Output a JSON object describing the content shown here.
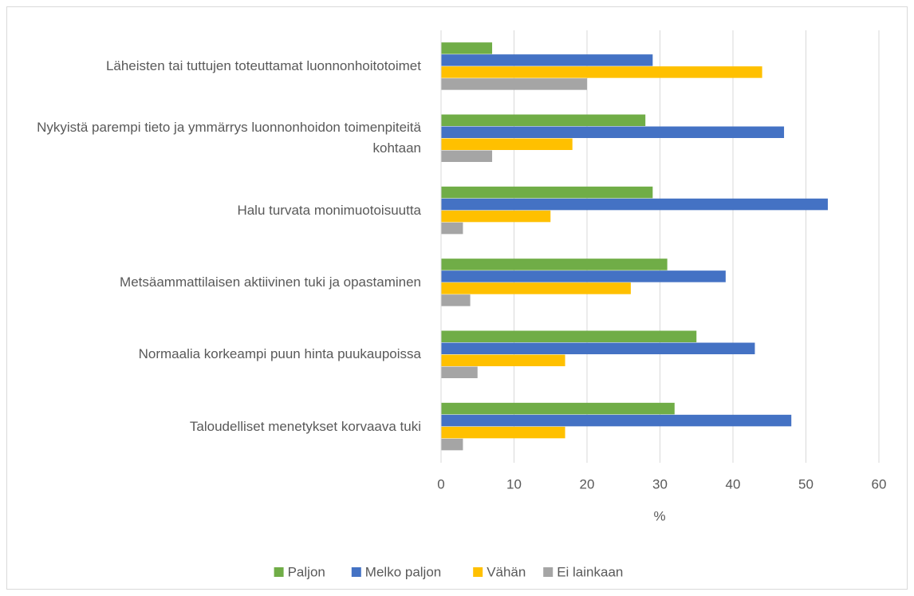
{
  "chart_data": {
    "type": "bar",
    "orientation": "horizontal",
    "categories": [
      "Läheisten tai tuttujen toteuttamat luonnonhoitotoimet",
      "Nykyistä parempi tieto ja ymmärrys luonnonhoidon toimenpiteitä kohtaan",
      "Halu turvata monimuotoisuutta",
      "Metsäammattilaisen aktiivinen tuki ja opastaminen",
      "Normaalia korkeampi puun hinta puukaupoissa",
      "Taloudelliset menetykset korvaava tuki"
    ],
    "series": [
      {
        "name": "Paljon",
        "color": "#70ad47",
        "values": [
          7,
          28,
          29,
          31,
          35,
          32
        ]
      },
      {
        "name": "Melko paljon",
        "color": "#4472c4",
        "values": [
          29,
          47,
          53,
          39,
          43,
          48
        ]
      },
      {
        "name": "Vähän",
        "color": "#ffc000",
        "values": [
          44,
          18,
          15,
          26,
          17,
          17
        ]
      },
      {
        "name": "Ei lainkaan",
        "color": "#a5a5a5",
        "values": [
          20,
          7,
          3,
          4,
          5,
          3
        ]
      }
    ],
    "xlabel": "%",
    "xlim": [
      0,
      60
    ],
    "xticks": [
      0,
      10,
      20,
      30,
      40,
      50,
      60
    ],
    "grid": true,
    "legend": "bottom"
  }
}
